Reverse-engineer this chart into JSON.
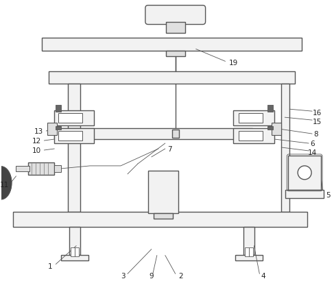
{
  "bg_color": "#ffffff",
  "line_color": "#555555",
  "fill_light": "#f2f2f2",
  "fill_mid": "#e0e0e0",
  "fill_dark": "#444444",
  "lw_main": 1.0,
  "lw_thin": 0.6,
  "lw_anno": 0.6
}
